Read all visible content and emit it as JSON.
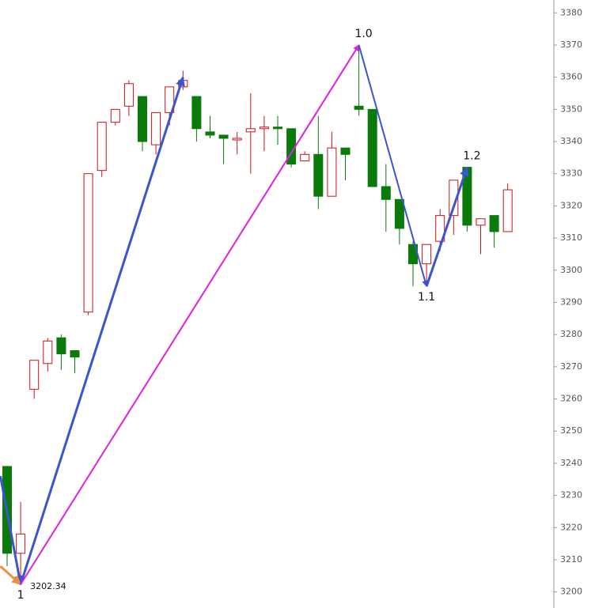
{
  "chart_data": {
    "type": "candlestick",
    "series": {
      "up_color": "#d0101a",
      "down_color": "#0a7a0a",
      "open": [
        3239,
        3212,
        3263,
        3271,
        3279,
        3275,
        3287,
        3331,
        3346,
        3351,
        3354,
        3339,
        3349,
        3357,
        3354,
        3343,
        3342,
        3340.5,
        3343,
        3344,
        3344.5,
        3344,
        3334,
        3336,
        3323,
        3338,
        3351,
        3350,
        3326,
        3322,
        3308,
        3302,
        3309,
        3317,
        3332,
        3314,
        3317,
        3312
      ],
      "high": [
        3239,
        3228,
        3272,
        3279,
        3280,
        3275,
        3330,
        3346,
        3350,
        3359,
        3354,
        3349,
        3357,
        3362,
        3354,
        3348,
        3342,
        3343,
        3355,
        3348,
        3348,
        3344,
        3337,
        3348,
        3343,
        3338,
        3370,
        3350,
        3333,
        3322,
        3309,
        3308,
        3319,
        3328,
        3332,
        3316,
        3317,
        3327
      ],
      "low": [
        3208,
        3202.34,
        3260,
        3268.5,
        3269,
        3268,
        3286,
        3329,
        3345,
        3348,
        3337,
        3336,
        3345,
        3356,
        3340,
        3341,
        3333,
        3336,
        3330,
        3337,
        3339,
        3332,
        3334,
        3319,
        3323,
        3328,
        3348,
        3326,
        3312,
        3308,
        3295,
        3296,
        3306,
        3311,
        3312,
        3305,
        3307,
        3312
      ],
      "close": [
        3212,
        3218,
        3272,
        3278,
        3274,
        3273,
        3330,
        3346,
        3350,
        3358,
        3340,
        3349,
        3357,
        3359,
        3344,
        3342,
        3341,
        3341,
        3344,
        3344.5,
        3344,
        3333,
        3336,
        3323,
        3338,
        3336,
        3350,
        3326,
        3322,
        3313,
        3302,
        3308,
        3317,
        3328,
        3314,
        3316,
        3312,
        3325
      ]
    },
    "ylim": [
      3195,
      3384
    ],
    "yticks": [
      3200,
      3210,
      3220,
      3230,
      3240,
      3250,
      3260,
      3270,
      3280,
      3290,
      3300,
      3310,
      3320,
      3330,
      3340,
      3350,
      3360,
      3370,
      3380
    ],
    "segments": [
      {
        "x": [
          -0.5,
          1
        ],
        "y": [
          3236,
          3202.34
        ],
        "color": "#3a55d0",
        "width": 3
      },
      {
        "x": [
          -0.5,
          1
        ],
        "y": [
          3208,
          3202.34
        ],
        "color": "#f0903c",
        "width": 3
      },
      {
        "x": [
          1,
          13
        ],
        "y": [
          3202.34,
          3360
        ],
        "color": "#3a55d0",
        "width": 3
      },
      {
        "x": [
          1,
          26
        ],
        "y": [
          3202.34,
          3370
        ],
        "color": "#e020e0",
        "width": 2
      },
      {
        "x": [
          26,
          31
        ],
        "y": [
          3370,
          3295
        ],
        "color": "#3a55d0",
        "width": 2
      },
      {
        "x": [
          31,
          34
        ],
        "y": [
          3295,
          3332
        ],
        "color": "#3a55d0",
        "width": 3
      }
    ],
    "annotations": [
      {
        "text": "1",
        "x": 1,
        "y": 3202.34,
        "place": "below"
      },
      {
        "text": "3202.34",
        "x": 1,
        "y": 3202.34,
        "place": "right"
      },
      {
        "text": "1.0",
        "x": 26,
        "y": 3370,
        "place": "above"
      },
      {
        "text": "1.1",
        "x": 31,
        "y": 3295,
        "place": "below"
      },
      {
        "text": "1.2",
        "x": 34,
        "y": 3332,
        "place": "above"
      }
    ]
  }
}
